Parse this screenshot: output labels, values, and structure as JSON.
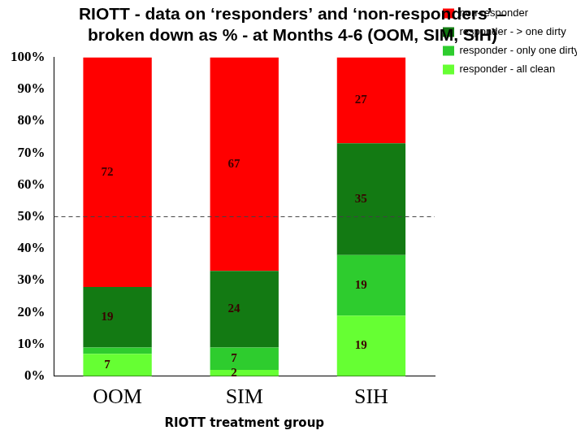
{
  "chart_data": {
    "type": "bar",
    "title": [
      "RIOTT - data on ‘responders’ and ‘non-responders’ –",
      "broken down as % - at Months 4-6 (OOM, SIM, SIH)"
    ],
    "x_label": "RIOTT treatment group",
    "categories": [
      "OOM",
      "SIM",
      "SIH"
    ],
    "series": [
      {
        "name": "responder - all clean",
        "color": "#66ff33",
        "values": [
          7,
          2,
          19
        ]
      },
      {
        "name": "responder - only one dirty",
        "color": "#2ecc2e",
        "values": [
          2,
          7,
          19
        ],
        "value_labels": [
          null,
          "7",
          "19"
        ]
      },
      {
        "name": "responder - > one dirty",
        "color": "#137a13",
        "values": [
          19,
          24,
          35
        ]
      },
      {
        "name": "non-responder",
        "color": "#ff0000",
        "values": [
          72,
          67,
          27
        ]
      }
    ],
    "stacked": true,
    "data_labels": true,
    "ylim": [
      0,
      100
    ],
    "yticks": [
      {
        "value": 0,
        "label": "0%"
      },
      {
        "value": 10,
        "label": "10%"
      },
      {
        "value": 20,
        "label": "20%"
      },
      {
        "value": 30,
        "label": "30%"
      },
      {
        "value": 40,
        "label": "40%"
      },
      {
        "value": 50,
        "label": "50%"
      },
      {
        "value": 60,
        "label": "60%"
      },
      {
        "value": 70,
        "label": "70%"
      },
      {
        "value": 80,
        "label": "80%"
      },
      {
        "value": 90,
        "label": "90%"
      },
      {
        "value": 100,
        "label": "100%"
      }
    ],
    "reference_line": 50,
    "grid": false,
    "legend": "top-right"
  }
}
